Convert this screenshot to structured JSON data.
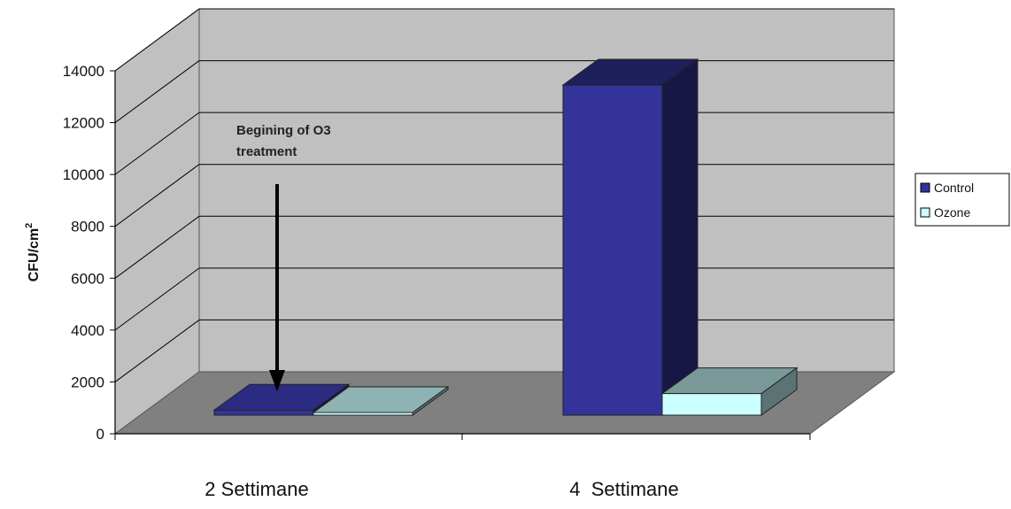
{
  "chart_data": {
    "type": "bar",
    "categories": [
      "2 Settimane",
      "4  Settimane"
    ],
    "series": [
      {
        "name": "Control",
        "values": [
          200,
          13000
        ],
        "color": "#333399"
      },
      {
        "name": "Ozone",
        "values": [
          80,
          850
        ],
        "color": "#ccffff"
      }
    ],
    "ylabel": "CFU/cm",
    "ylabel_superscript": "2",
    "ylim": [
      0,
      14000
    ],
    "yticks": [
      0,
      2000,
      4000,
      6000,
      8000,
      10000,
      12000,
      14000
    ],
    "grid": true,
    "legend_position": "right",
    "annotation": {
      "lines": [
        "Begining of O3",
        "treatment"
      ],
      "category": "2 Settimane"
    },
    "style": "3d-clustered-column"
  }
}
